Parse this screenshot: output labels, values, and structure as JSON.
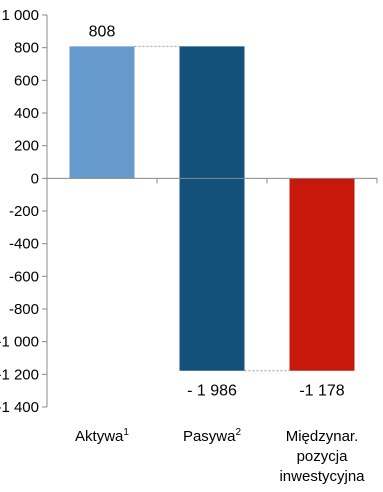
{
  "chart_data": {
    "type": "bar",
    "subtype": "waterfall",
    "ylim": [
      -1400,
      1000
    ],
    "yticks": [
      1000,
      800,
      600,
      400,
      200,
      0,
      -200,
      -400,
      -600,
      -800,
      -1000,
      -1200,
      -1400
    ],
    "ytick_labels": [
      "1 000",
      "800",
      "600",
      "400",
      "200",
      "0",
      "-200",
      "-400",
      "-600",
      "-800",
      "-1 000",
      "-1 200",
      "-1 400"
    ],
    "grid": false,
    "legend": "none",
    "categories": [
      {
        "lines": [
          "Aktywa"
        ],
        "sup": "1"
      },
      {
        "lines": [
          "Pasywa"
        ],
        "sup": "2"
      },
      {
        "lines": [
          "Międzynar.",
          "pozycja",
          "inwestycyjna"
        ],
        "sup": ""
      }
    ],
    "bars": [
      {
        "name": "Aktywa",
        "start": 0,
        "end": 808,
        "color": "#6699cc",
        "label": "808",
        "label_pos": "above"
      },
      {
        "name": "Pasywa",
        "start": 808,
        "end": -1178,
        "color": "#13507a",
        "label": "- 1 986",
        "label_pos": "below"
      },
      {
        "name": "Międzynar. pozycja inwestycyjna",
        "start": 0,
        "end": -1178,
        "color": "#c8180c",
        "label": "-1 178",
        "label_pos": "below"
      }
    ],
    "connectors": [
      {
        "from_bar": 0,
        "to_bar": 1,
        "value": 808
      },
      {
        "from_bar": 1,
        "to_bar": 2,
        "value": -1178
      }
    ]
  }
}
